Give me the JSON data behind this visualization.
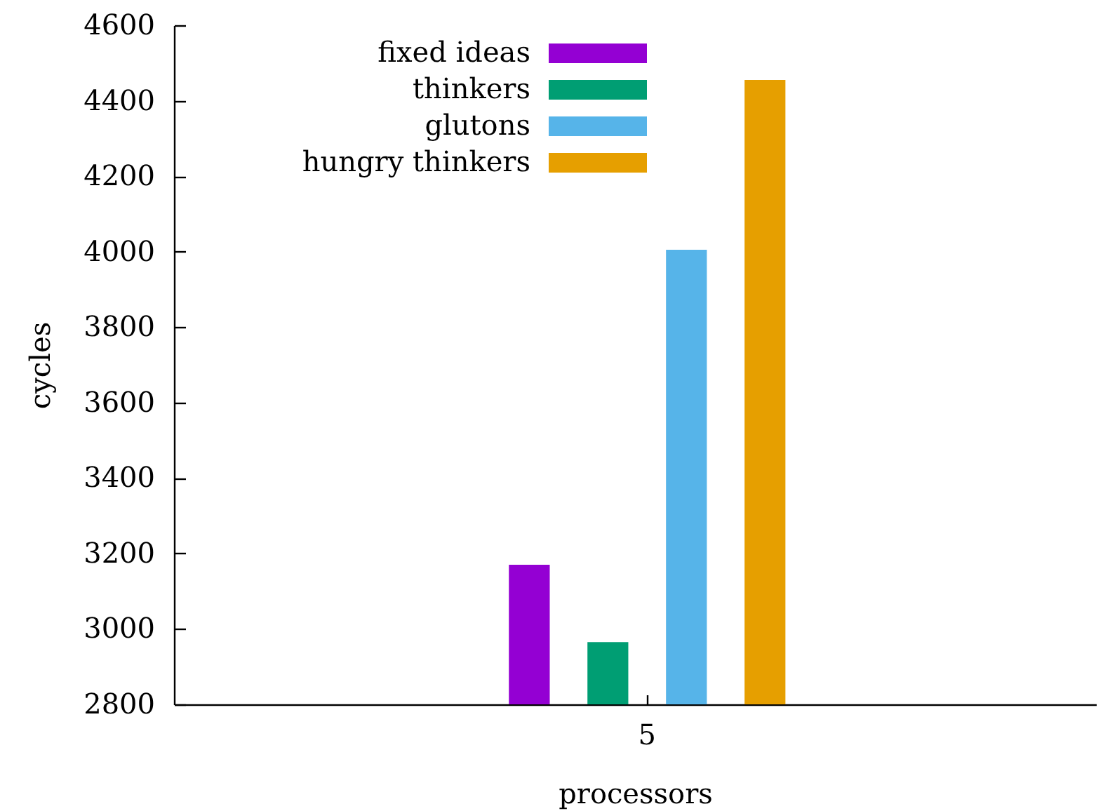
{
  "chart_data": {
    "type": "bar",
    "xlabel": "processors",
    "ylabel": "cycles",
    "categories": [
      "5"
    ],
    "series": [
      {
        "name": "fixed ideas",
        "color": "#9400d3",
        "values": [
          3170
        ]
      },
      {
        "name": "thinkers",
        "color": "#009e73",
        "values": [
          2965
        ]
      },
      {
        "name": "glutons",
        "color": "#56b4e9",
        "values": [
          4005
        ]
      },
      {
        "name": "hungry thinkers",
        "color": "#e69f00",
        "values": [
          4455
        ]
      }
    ],
    "ylim": [
      2800,
      4600
    ],
    "yticks": [
      2800,
      3000,
      3200,
      3400,
      3600,
      3800,
      4000,
      4200,
      4400,
      4600
    ],
    "legend": "top left"
  }
}
